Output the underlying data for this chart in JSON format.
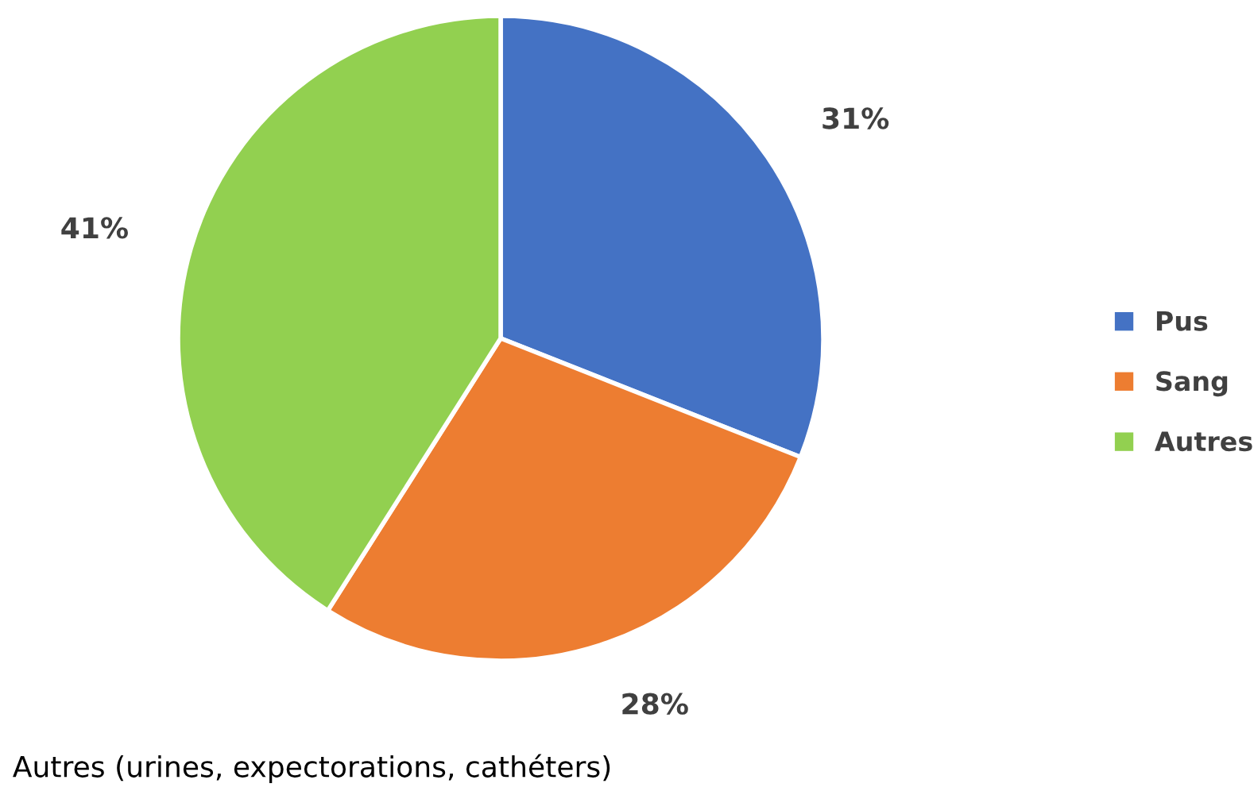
{
  "chart_data": {
    "type": "pie",
    "categories": [
      "Pus",
      "Sang",
      "Autres"
    ],
    "values": [
      31,
      28,
      41
    ],
    "colors": [
      "#4472c4",
      "#ed7d31",
      "#92d050"
    ],
    "value_labels": [
      "31%",
      "28%",
      "41%"
    ],
    "legend": "right",
    "annotations": [
      "Autres (urines, expectorations, cathéters)"
    ]
  }
}
